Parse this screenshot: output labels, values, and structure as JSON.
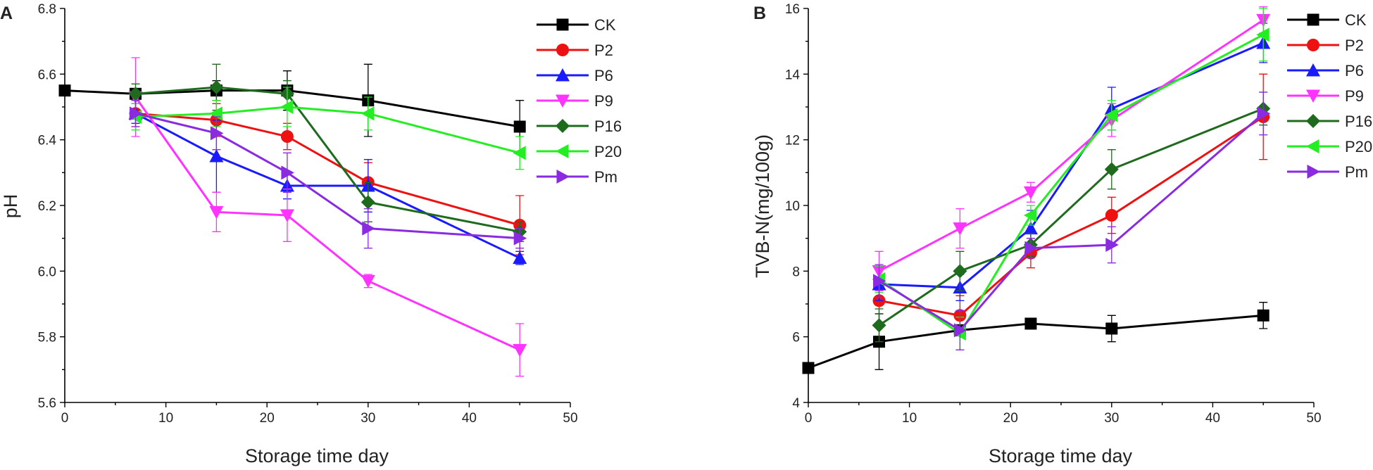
{
  "chart_data": [
    {
      "type": "line",
      "panel_label": "A",
      "xlabel": "Storage time day",
      "ylabel": "pH",
      "xlim": [
        0,
        50
      ],
      "ylim": [
        5.6,
        6.8
      ],
      "xticks": [
        0,
        10,
        20,
        30,
        40,
        50
      ],
      "xtick_labels": [
        "0",
        "10",
        "20",
        "30",
        "40",
        "50"
      ],
      "yticks": [
        5.6,
        5.8,
        6.0,
        6.2,
        6.4,
        6.6,
        6.8
      ],
      "ytick_labels": [
        "5.6",
        "5.8",
        "6.0",
        "6.2",
        "6.4",
        "6.6",
        "6.8"
      ],
      "grid": false,
      "legend_position": "top-right",
      "series": [
        {
          "name": "CK",
          "color": "#000000",
          "marker": "square",
          "x": [
            0,
            7,
            15,
            22,
            30,
            45
          ],
          "y": [
            6.55,
            6.54,
            6.55,
            6.55,
            6.52,
            6.44
          ],
          "err": [
            0,
            0,
            0.03,
            0.06,
            0.11,
            0.08
          ]
        },
        {
          "name": "P2",
          "color": "#ee1111",
          "marker": "circle",
          "x": [
            7,
            15,
            22,
            30,
            45
          ],
          "y": [
            6.48,
            6.46,
            6.41,
            6.27,
            6.14
          ],
          "err": [
            0.04,
            0.05,
            0.04,
            0.06,
            0.09
          ]
        },
        {
          "name": "P6",
          "color": "#1a1aff",
          "marker": "triangle-up",
          "x": [
            7,
            15,
            22,
            30,
            45
          ],
          "y": [
            6.48,
            6.35,
            6.26,
            6.26,
            6.04
          ],
          "err": [
            0.03,
            0.11,
            0.04,
            0.08,
            0.02
          ]
        },
        {
          "name": "P9",
          "color": "#ff33ff",
          "marker": "triangle-down",
          "x": [
            7,
            15,
            22,
            30,
            45
          ],
          "y": [
            6.53,
            6.18,
            6.17,
            5.97,
            5.76
          ],
          "err": [
            0.12,
            0.06,
            0.08,
            0.02,
            0.08
          ]
        },
        {
          "name": "P16",
          "color": "#1e6b1e",
          "marker": "diamond",
          "x": [
            7,
            15,
            22,
            30,
            45
          ],
          "y": [
            6.54,
            6.56,
            6.54,
            6.21,
            6.12
          ],
          "err": [
            0.03,
            0.07,
            0.04,
            0.06,
            0.03
          ]
        },
        {
          "name": "P20",
          "color": "#22ee22",
          "marker": "triangle-left",
          "x": [
            7,
            15,
            22,
            30,
            45
          ],
          "y": [
            6.47,
            6.48,
            6.5,
            6.48,
            6.36
          ],
          "err": [
            0.04,
            0.04,
            0.06,
            0.05,
            0.05
          ]
        },
        {
          "name": "Pm",
          "color": "#8a2be2",
          "marker": "triangle-right",
          "x": [
            7,
            15,
            22,
            30,
            45
          ],
          "y": [
            6.48,
            6.42,
            6.3,
            6.13,
            6.1
          ],
          "err": [
            0.04,
            0.05,
            0.06,
            0.06,
            0.03
          ]
        }
      ]
    },
    {
      "type": "line",
      "panel_label": "B",
      "xlabel": "Storage time day",
      "ylabel": "TVB-N(mg/100g)",
      "xlim": [
        0,
        50
      ],
      "ylim": [
        4,
        16
      ],
      "xticks": [
        0,
        10,
        20,
        30,
        40,
        50
      ],
      "xtick_labels": [
        "0",
        "10",
        "20",
        "30",
        "40",
        "50"
      ],
      "yticks": [
        4,
        6,
        8,
        10,
        12,
        14,
        16
      ],
      "ytick_labels": [
        "4",
        "6",
        "8",
        "10",
        "12",
        "14",
        "16"
      ],
      "grid": false,
      "legend_position": "top-right",
      "series": [
        {
          "name": "CK",
          "color": "#000000",
          "marker": "square",
          "x": [
            0,
            7,
            15,
            22,
            30,
            45
          ],
          "y": [
            5.05,
            5.85,
            6.2,
            6.4,
            6.25,
            6.65
          ],
          "err": [
            0,
            0.85,
            0.15,
            0.15,
            0.4,
            0.4
          ]
        },
        {
          "name": "P2",
          "color": "#ee1111",
          "marker": "circle",
          "x": [
            7,
            15,
            22,
            30,
            45
          ],
          "y": [
            7.1,
            6.65,
            8.55,
            9.7,
            12.7
          ],
          "err": [
            0.7,
            0.6,
            0.45,
            0.55,
            1.3
          ]
        },
        {
          "name": "P6",
          "color": "#1a1aff",
          "marker": "triangle-up",
          "x": [
            7,
            15,
            22,
            30,
            45
          ],
          "y": [
            7.6,
            7.5,
            9.3,
            12.95,
            14.95
          ],
          "err": [
            0.5,
            0.4,
            0.55,
            0.65,
            0.6
          ]
        },
        {
          "name": "P9",
          "color": "#ff33ff",
          "marker": "triangle-down",
          "x": [
            7,
            15,
            22,
            30,
            45
          ],
          "y": [
            8.0,
            9.3,
            10.4,
            12.6,
            15.65
          ],
          "err": [
            0.6,
            0.6,
            0.3,
            0.5,
            0.4
          ]
        },
        {
          "name": "P16",
          "color": "#1e6b1e",
          "marker": "diamond",
          "x": [
            7,
            15,
            22,
            30,
            45
          ],
          "y": [
            6.35,
            8.0,
            8.8,
            11.1,
            12.95
          ],
          "err": [
            0.5,
            0.6,
            0.35,
            0.6,
            0.5
          ]
        },
        {
          "name": "P20",
          "color": "#22ee22",
          "marker": "triangle-left",
          "x": [
            7,
            15,
            22,
            30,
            45
          ],
          "y": [
            7.75,
            6.1,
            9.7,
            12.75,
            15.2
          ],
          "err": [
            0.4,
            0.5,
            0.3,
            0.45,
            0.8
          ]
        },
        {
          "name": "Pm",
          "color": "#8a2be2",
          "marker": "triangle-right",
          "x": [
            7,
            15,
            22,
            30,
            45
          ],
          "y": [
            7.7,
            6.2,
            8.7,
            8.8,
            12.8
          ],
          "err": [
            0.5,
            0.6,
            0.3,
            0.55,
            0.65
          ]
        }
      ]
    }
  ]
}
